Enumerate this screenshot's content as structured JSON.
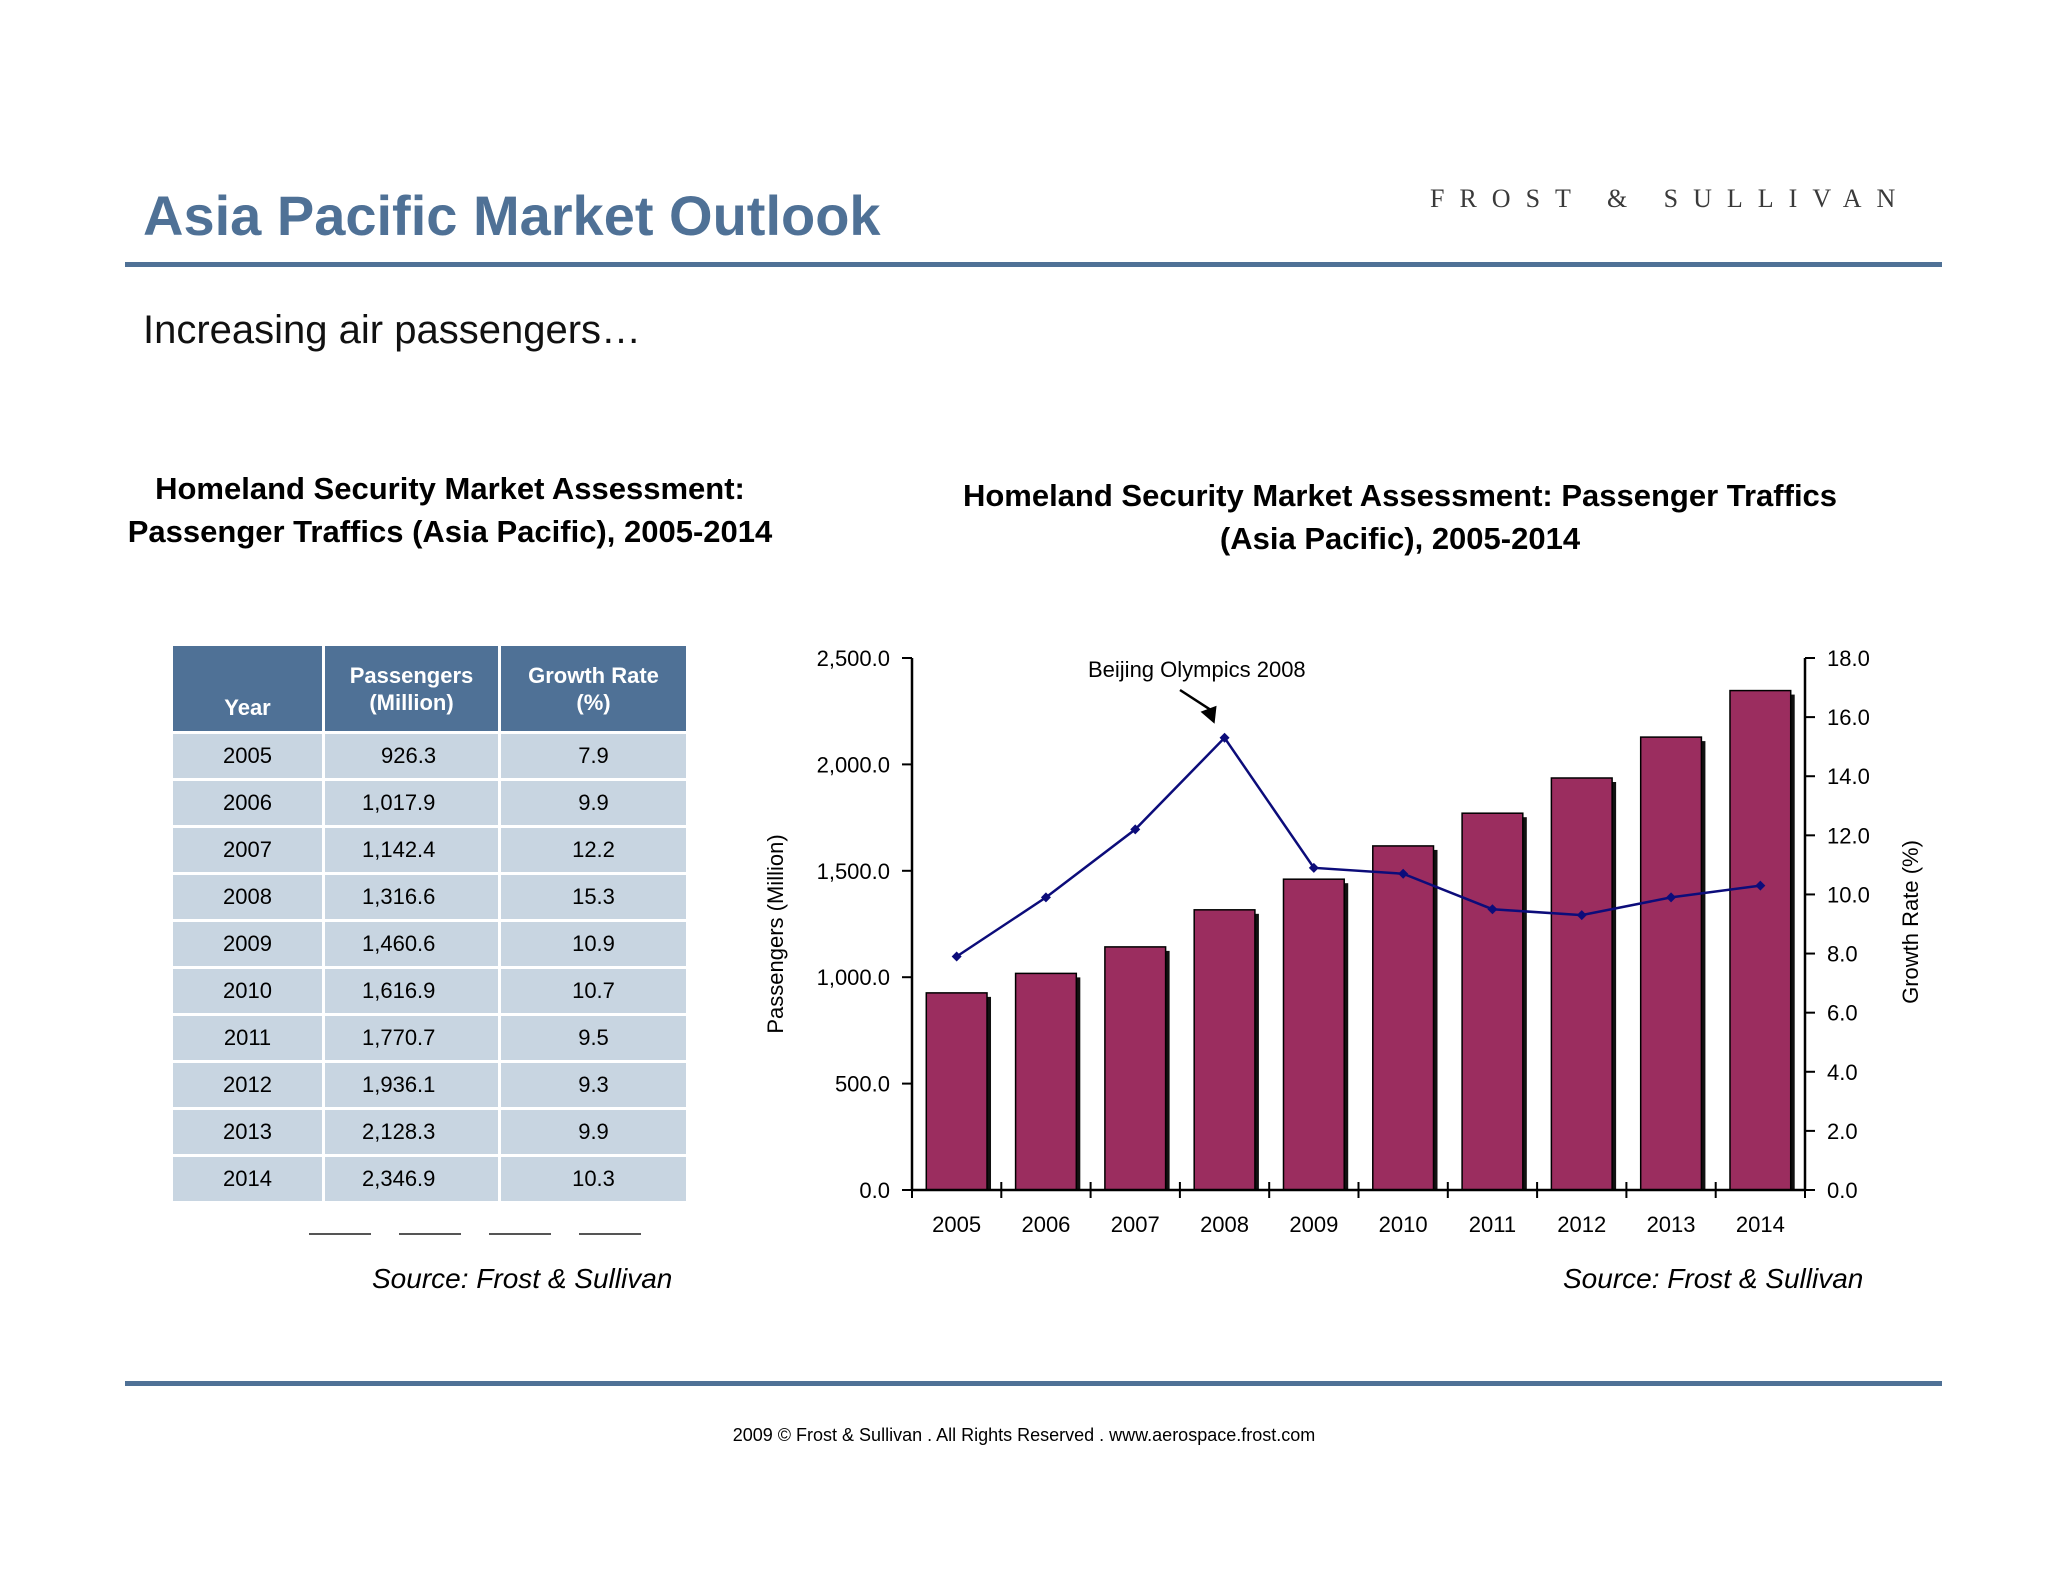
{
  "header": {
    "title": "Asia Pacific Market Outlook",
    "brand": "FROST & SULLIVAN",
    "subtitle": "Increasing air passengers…"
  },
  "table_section": {
    "title_line1": "Homeland Security Market Assessment:",
    "title_line2": "Passenger Traffics (Asia Pacific), 2005-2014",
    "source": "Source: Frost & Sullivan",
    "headers": {
      "year": "Year",
      "passengers_l1": "Passengers",
      "passengers_l2": "(Million)",
      "growth_l1": "Growth Rate",
      "growth_l2": "(%)"
    },
    "rows": [
      {
        "year": "2005",
        "passengers": "926.3",
        "growth": "7.9"
      },
      {
        "year": "2006",
        "passengers": "1,017.9",
        "growth": "9.9"
      },
      {
        "year": "2007",
        "passengers": "1,142.4",
        "growth": "12.2"
      },
      {
        "year": "2008",
        "passengers": "1,316.6",
        "growth": "15.3"
      },
      {
        "year": "2009",
        "passengers": "1,460.6",
        "growth": "10.9"
      },
      {
        "year": "2010",
        "passengers": "1,616.9",
        "growth": "10.7"
      },
      {
        "year": "2011",
        "passengers": "1,770.7",
        "growth": "9.5"
      },
      {
        "year": "2012",
        "passengers": "1,936.1",
        "growth": "9.3"
      },
      {
        "year": "2013",
        "passengers": "2,128.3",
        "growth": "9.9"
      },
      {
        "year": "2014",
        "passengers": "2,346.9",
        "growth": "10.3"
      }
    ]
  },
  "chart_section": {
    "title_line1": "Homeland Security Market Assessment: Passenger Traffics",
    "title_line2": "(Asia Pacific), 2005-2014",
    "source": "Source: Frost & Sullivan"
  },
  "chart_data": {
    "type": "bar",
    "title": "Homeland Security Market Assessment: Passenger Traffics (Asia Pacific), 2005-2014",
    "categories": [
      "2005",
      "2006",
      "2007",
      "2008",
      "2009",
      "2010",
      "2011",
      "2012",
      "2013",
      "2014"
    ],
    "series": [
      {
        "type": "bar",
        "axis": "left",
        "color": "#9b2d5f",
        "values": [
          926.3,
          1017.9,
          1142.4,
          1316.6,
          1460.6,
          1616.9,
          1770.7,
          1936.1,
          2128.3,
          2346.9
        ]
      },
      {
        "type": "line",
        "axis": "right",
        "color": "#0c0c7a",
        "values": [
          7.9,
          9.9,
          12.2,
          15.3,
          10.9,
          10.7,
          9.5,
          9.3,
          9.9,
          10.3
        ]
      }
    ],
    "ylabel": "Passengers (Million)",
    "y2label": "Growth Rate (%)",
    "ylim": [
      0,
      2500
    ],
    "y2lim": [
      0,
      18
    ],
    "yticks": [
      "0.0",
      "500.0",
      "1,000.0",
      "1,500.0",
      "2,000.0",
      "2,500.0"
    ],
    "y2ticks": [
      "0.0",
      "2.0",
      "4.0",
      "6.0",
      "8.0",
      "10.0",
      "12.0",
      "14.0",
      "16.0",
      "18.0"
    ],
    "annotation": {
      "text": "Beijing Olympics 2008",
      "category": "2008"
    },
    "grid": false,
    "legend": "none"
  },
  "footer": {
    "text": "2009 © Frost & Sullivan . All Rights Reserved . www.aerospace.frost.com"
  }
}
